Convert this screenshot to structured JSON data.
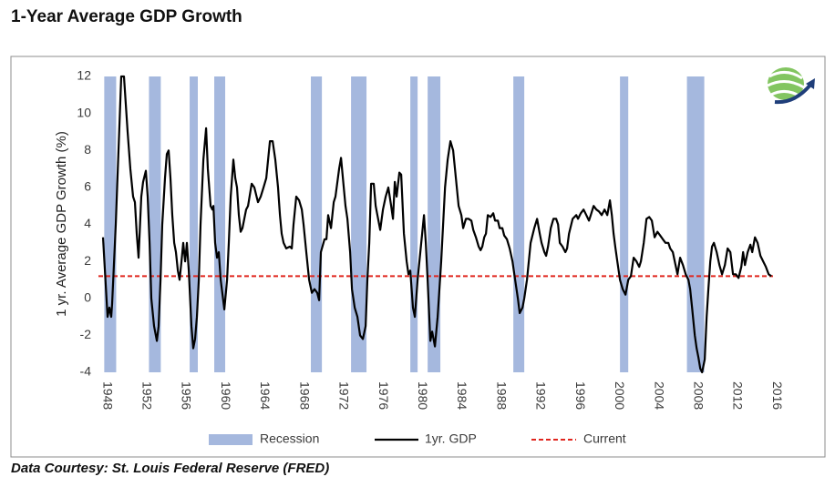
{
  "chart_data": {
    "type": "line",
    "title": "1-Year Average GDP Growth",
    "y_label": "1 yr. Average GDP Growth (%)",
    "source": "Data Courtesy: St. Louis Federal Reserve (FRED)",
    "xlim": [
      1948,
      2016.5
    ],
    "ylim": [
      -4,
      12
    ],
    "xticks": [
      1948,
      1952,
      1956,
      1960,
      1964,
      1968,
      1972,
      1976,
      1980,
      1984,
      1988,
      1992,
      1996,
      2000,
      2004,
      2008,
      2012,
      2016
    ],
    "yticks": [
      -4,
      -2,
      0,
      2,
      4,
      6,
      8,
      10,
      12
    ],
    "grid": false,
    "legend": "bottom",
    "recession": {
      "name": "Recession",
      "color": "#a5b8de",
      "spans": [
        [
          1948.59,
          1949.8
        ],
        [
          1953.13,
          1954.33
        ],
        [
          1957.26,
          1958.09
        ],
        [
          1959.76,
          1960.87
        ],
        [
          1969.57,
          1970.69
        ],
        [
          1973.65,
          1975.22
        ],
        [
          1979.67,
          1980.41
        ],
        [
          1981.43,
          1982.72
        ],
        [
          1990.13,
          1991.24
        ],
        [
          2000.96,
          2001.8
        ],
        [
          2007.76,
          2009.52
        ]
      ]
    },
    "current": {
      "name": "Current",
      "color": "#e0261e",
      "value": 1.2
    },
    "x": [
      1948.46,
      1948.93,
      1949.11,
      1949.3,
      1949.39,
      1949.76,
      1950.04,
      1950.31,
      1950.59,
      1950.78,
      1950.96,
      1951.24,
      1951.52,
      1951.7,
      1951.89,
      1952.07,
      1952.35,
      1952.54,
      1952.81,
      1953.0,
      1953.19,
      1953.37,
      1953.65,
      1953.93,
      1954.11,
      1954.3,
      1954.48,
      1954.76,
      1954.94,
      1955.13,
      1955.31,
      1955.5,
      1955.69,
      1955.87,
      1956.06,
      1956.24,
      1956.43,
      1956.61,
      1956.8,
      1956.98,
      1957.17,
      1957.44,
      1957.63,
      1957.81,
      1958.0,
      1958.19,
      1958.37,
      1958.65,
      1958.93,
      1959.11,
      1959.39,
      1959.57,
      1959.67,
      1959.85,
      1960.04,
      1960.22,
      1960.41,
      1960.78,
      1961.06,
      1961.24,
      1961.43,
      1961.7,
      1961.89,
      1962.07,
      1962.26,
      1962.44,
      1962.63,
      1963.0,
      1963.19,
      1963.56,
      1963.83,
      1964.2,
      1964.48,
      1964.76,
      1965.04,
      1965.41,
      1965.69,
      1965.96,
      1966.24,
      1966.43,
      1966.61,
      1966.8,
      1967.07,
      1967.44,
      1967.63,
      1967.81,
      1968.09,
      1968.37,
      1968.65,
      1968.83,
      1969.11,
      1969.39,
      1969.67,
      1969.94,
      1970.22,
      1970.41,
      1970.59,
      1970.96,
      1971.15,
      1971.33,
      1971.61,
      1971.89,
      1972.07,
      1972.44,
      1972.63,
      1972.91,
      1973.09,
      1973.28,
      1973.56,
      1973.74,
      1974.02,
      1974.3,
      1974.57,
      1974.85,
      1975.13,
      1975.31,
      1975.5,
      1975.69,
      1975.96,
      1976.15,
      1976.33,
      1976.61,
      1976.89,
      1977.17,
      1977.44,
      1977.72,
      1977.91,
      1978.09,
      1978.28,
      1978.56,
      1978.74,
      1979.02,
      1979.3,
      1979.48,
      1979.67,
      1979.94,
      1980.13,
      1980.41,
      1980.69,
      1980.87,
      1981.06,
      1981.24,
      1981.43,
      1981.7,
      1981.89,
      1982.17,
      1982.44,
      1982.81,
      1983.0,
      1983.19,
      1983.46,
      1983.74,
      1984.02,
      1984.3,
      1984.57,
      1984.85,
      1985.04,
      1985.31,
      1985.59,
      1985.87,
      1986.06,
      1986.33,
      1986.61,
      1986.8,
      1986.98,
      1987.17,
      1987.35,
      1987.54,
      1987.81,
      1988.09,
      1988.28,
      1988.56,
      1988.74,
      1989.02,
      1989.2,
      1989.48,
      1989.76,
      1990.04,
      1990.31,
      1990.59,
      1990.78,
      1991.06,
      1991.24,
      1991.52,
      1991.7,
      1991.89,
      1992.26,
      1992.54,
      1992.81,
      1993.0,
      1993.28,
      1993.46,
      1993.65,
      1993.93,
      1994.2,
      1994.48,
      1994.67,
      1994.85,
      1995.13,
      1995.41,
      1995.59,
      1995.78,
      1996.15,
      1996.52,
      1996.7,
      1996.98,
      1997.26,
      1997.54,
      1997.81,
      1998.0,
      1998.28,
      1998.56,
      1998.83,
      1999.11,
      1999.39,
      1999.67,
      1999.94,
      2000.13,
      2000.31,
      2000.5,
      2000.69,
      2000.96,
      2001.24,
      2001.52,
      2001.8,
      2002.07,
      2002.35,
      2002.63,
      2002.91,
      2003.09,
      2003.37,
      2003.65,
      2003.93,
      2004.2,
      2004.48,
      2004.76,
      2005.04,
      2005.31,
      2005.59,
      2005.87,
      2006.06,
      2006.33,
      2006.52,
      2006.8,
      2007.07,
      2007.35,
      2007.63,
      2007.91,
      2008.09,
      2008.28,
      2008.56,
      2008.74,
      2008.93,
      2009.11,
      2009.3,
      2009.57,
      2009.76,
      2009.94,
      2010.13,
      2010.31,
      2010.5,
      2010.78,
      2011.06,
      2011.33,
      2011.61,
      2011.89,
      2012.17,
      2012.44,
      2012.72,
      2013.0,
      2013.28,
      2013.46,
      2013.65,
      2013.93,
      2014.2,
      2014.39,
      2014.67,
      2014.94,
      2015.22,
      2015.5,
      2015.78,
      2016.06,
      2016.33
    ],
    "series": [
      {
        "name": "1yr. GDP",
        "color": "#000000",
        "values": [
          3.3,
          -1,
          -0.5,
          -1,
          -0.3,
          4,
          8,
          12,
          12,
          10.5,
          9,
          7,
          5.5,
          5.2,
          3.5,
          2.2,
          5.5,
          6.3,
          6.9,
          5.5,
          3,
          0,
          -1.5,
          -2.3,
          -1.5,
          1,
          4,
          6.5,
          7.8,
          8,
          6.5,
          4.5,
          3,
          2.5,
          1.5,
          1,
          2,
          3,
          2,
          3,
          1.5,
          -1.5,
          -2.7,
          -2.2,
          -1,
          1,
          4,
          7.5,
          9.2,
          7,
          5,
          4.8,
          5,
          3,
          2.2,
          2.5,
          1,
          -0.6,
          1,
          3,
          5.5,
          7.5,
          6.5,
          6,
          4.5,
          3.6,
          3.8,
          4.8,
          5,
          6.2,
          6,
          5.2,
          5.5,
          6,
          6.5,
          8.5,
          8.5,
          7.5,
          6,
          4.5,
          3.5,
          3,
          2.7,
          2.8,
          2.7,
          4,
          5.5,
          5.3,
          4.8,
          4,
          2.5,
          1,
          0.3,
          0.5,
          0.3,
          -0.1,
          2.5,
          3.2,
          3.2,
          4.5,
          3.8,
          5.2,
          5.5,
          7,
          7.6,
          6,
          5,
          4.3,
          2.5,
          0.5,
          -0.5,
          -1,
          -2,
          -2.2,
          -1.5,
          1,
          3,
          6.2,
          6.2,
          5,
          4.5,
          3.7,
          4.8,
          5.5,
          6,
          5,
          4.3,
          6.3,
          5.5,
          6.8,
          6.7,
          3.5,
          2,
          1.3,
          1.5,
          -0.5,
          -1,
          1,
          2.5,
          3.5,
          4.5,
          3,
          1,
          -2.3,
          -1.8,
          -2.6,
          -1,
          2,
          4,
          6,
          7.5,
          8.5,
          8,
          6.5,
          5,
          4.5,
          3.8,
          4.3,
          4.3,
          4.2,
          3.7,
          3.3,
          2.8,
          2.6,
          2.8,
          3.3,
          3.5,
          4.5,
          4.4,
          4.6,
          4.2,
          4.2,
          3.8,
          3.8,
          3.4,
          3.2,
          2.7,
          2,
          1,
          0,
          -0.8,
          -0.5,
          0,
          1,
          2,
          3,
          3.8,
          4.3,
          3.5,
          3,
          2.5,
          2.3,
          2.8,
          3.8,
          4.3,
          4.3,
          4,
          3,
          2.8,
          2.5,
          2.7,
          3.5,
          4.3,
          4.5,
          4.3,
          4.6,
          4.8,
          4.5,
          4.2,
          4.5,
          5,
          4.8,
          4.7,
          4.5,
          4.8,
          4.5,
          5.3,
          4.5,
          3.5,
          2.7,
          2,
          1,
          0.5,
          0.2,
          1,
          1.2,
          2.2,
          2,
          1.7,
          2,
          3,
          4.3,
          4.4,
          4.2,
          3.3,
          3.6,
          3.4,
          3.2,
          3,
          3,
          2.7,
          2.5,
          2,
          1.3,
          2.2,
          1.8,
          1.3,
          1,
          0.5,
          -0.5,
          -2,
          -2.7,
          -3.2,
          -3.8,
          -4,
          -3.3,
          -1,
          0.5,
          2,
          2.8,
          3,
          2.5,
          1.8,
          1.3,
          1.8,
          2.7,
          2.5,
          1.3,
          1.3,
          1.1,
          1.7,
          2.5,
          1.8,
          2.5,
          2.9,
          2.5,
          3.3,
          3,
          2.3,
          2,
          1.7,
          1.3,
          1.2
        ]
      }
    ]
  }
}
